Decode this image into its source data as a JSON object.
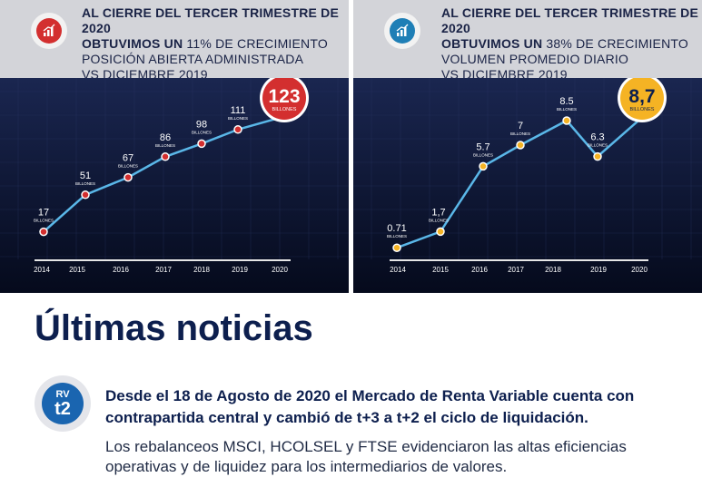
{
  "left_header": {
    "line1": "AL CIERRE DEL TERCER TRIMESTRE DE 2020",
    "line2_prefix": "OBTUVIMOS UN ",
    "line2_highlight": "11%",
    "line2_suffix": " DE CRECIMIENTO",
    "line3": "POSICIÓN ABIERTA ADMINISTRADA",
    "line4": "VS  DICIEMBRE 2019",
    "icon": "bar-chart-growth-icon",
    "accent_color": "#d32f2f"
  },
  "right_header": {
    "line1": "AL CIERRE DEL TERCER TRIMESTRE DE 2020",
    "line2_prefix": "OBTUVIMOS UN ",
    "line2_highlight": "38%",
    "line2_suffix": " DE CRECIMIENTO",
    "line3": "VOLUMEN PROMEDIO DIARIO",
    "line4": "VS  DICIEMBRE 2019",
    "icon": "bar-chart-growth-icon",
    "accent_color": "#1f7fb6"
  },
  "chart_data": [
    {
      "type": "line",
      "x": [
        "2014",
        "2015",
        "2016",
        "2017",
        "2018",
        "2019",
        "2020"
      ],
      "series": [
        {
          "values": [
            17,
            51,
            67,
            86,
            98,
            111,
            123
          ],
          "value_labels": [
            "17",
            "51",
            "67",
            "86",
            "98",
            "111",
            "123"
          ],
          "unit_label": "BILLONES"
        }
      ],
      "ylim": [
        0,
        140
      ],
      "highlight": {
        "label": "123",
        "unit": "BILLONES",
        "color": "#d32f2f"
      }
    },
    {
      "type": "line",
      "x": [
        "2014",
        "2015",
        "2016",
        "2017",
        "2018",
        "2019",
        "2020"
      ],
      "series": [
        {
          "values": [
            0.71,
            1.7,
            5.7,
            7,
            8.5,
            6.3,
            8.7
          ],
          "value_labels": [
            "0.71",
            "1,7",
            "5.7",
            "7",
            "8.5",
            "6.3",
            "8,7"
          ],
          "unit_label": "BILLONES"
        }
      ],
      "ylim": [
        0,
        10
      ],
      "highlight": {
        "label": "8,7",
        "unit": "BILLONES",
        "color": "#f5b324"
      }
    }
  ],
  "news": {
    "title": "Últimas noticias",
    "badge_top": "RV",
    "badge_bottom": "t2",
    "headline": "Desde el 18 de Agosto de 2020 el Mercado de Renta Variable cuenta con contrapartida central y cambió de t+3 a t+2 el ciclo de liquidación.",
    "summary": "Los rebalanceos MSCI, HCOLSEL y FTSE evidenciaron las altas eficiencias operativas y de liquidez para los intermediarios de valores."
  }
}
